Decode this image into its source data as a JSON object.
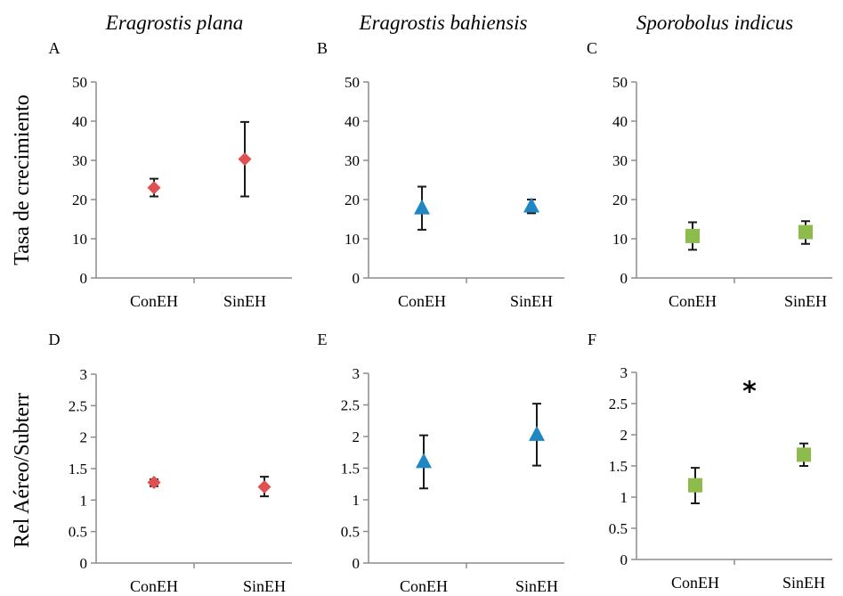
{
  "column_titles": [
    "Eragrostis plana",
    "Eragrostis bahiensis",
    "Sporobolus indicus"
  ],
  "row_labels": [
    "Tasa de crecimiento",
    "Rel Aéreo/Subterr"
  ],
  "colors": {
    "Eragrostis plana": "#e0504f",
    "Eragrostis bahiensis": "#1f87c2",
    "Sporobolus indicus": "#8dbb4c"
  },
  "chart_data": [
    {
      "panel": "A",
      "type": "scatter",
      "title": "Eragrostis plana",
      "xlabel": "",
      "ylabel": "Tasa de crecimiento",
      "marker": "diamond",
      "categories": [
        "ConEH",
        "SinEH"
      ],
      "values": [
        23,
        30.3
      ],
      "err_low": [
        20.8,
        20.8
      ],
      "err_high": [
        25.3,
        39.8
      ],
      "yticks": [
        "0",
        "10",
        "20",
        "30",
        "40",
        "50"
      ],
      "ylim": [
        0,
        50
      ],
      "significance": ""
    },
    {
      "panel": "B",
      "type": "scatter",
      "title": "Eragrostis bahiensis",
      "xlabel": "",
      "ylabel": "",
      "marker": "triangle",
      "categories": [
        "ConEH",
        "SinEH"
      ],
      "values": [
        17.8,
        18.3
      ],
      "err_low": [
        12.3,
        16.5
      ],
      "err_high": [
        23.3,
        20.0
      ],
      "yticks": [
        "0",
        "10",
        "20",
        "30",
        "40",
        "50"
      ],
      "ylim": [
        0,
        50
      ],
      "significance": ""
    },
    {
      "panel": "C",
      "type": "scatter",
      "title": "Sporobolus indicus",
      "xlabel": "",
      "ylabel": "",
      "marker": "square",
      "categories": [
        "ConEH",
        "SinEH"
      ],
      "values": [
        10.7,
        11.7
      ],
      "err_low": [
        7.2,
        8.7
      ],
      "err_high": [
        14.2,
        14.5
      ],
      "yticks": [
        "0",
        "10",
        "20",
        "30",
        "40",
        "50"
      ],
      "ylim": [
        0,
        50
      ],
      "significance": ""
    },
    {
      "panel": "D",
      "type": "scatter",
      "title": "",
      "xlabel": "",
      "ylabel": "Rel Aéreo/Subterr",
      "marker": "diamond",
      "categories": [
        "ConEH",
        "SinEH"
      ],
      "values": [
        1.28,
        1.21
      ],
      "err_low": [
        1.22,
        1.06
      ],
      "err_high": [
        1.33,
        1.37
      ],
      "yticks": [
        "0",
        "0.5",
        "1",
        "1.5",
        "2",
        "2.5",
        "3"
      ],
      "ylim": [
        0,
        3
      ],
      "significance": ""
    },
    {
      "panel": "E",
      "type": "scatter",
      "title": "",
      "xlabel": "",
      "ylabel": "",
      "marker": "triangle",
      "categories": [
        "ConEH",
        "SinEH"
      ],
      "values": [
        1.6,
        2.03
      ],
      "err_low": [
        1.18,
        1.54
      ],
      "err_high": [
        2.02,
        2.52
      ],
      "yticks": [
        "0",
        "0.5",
        "1",
        "1.5",
        "2",
        "2.5",
        "3"
      ],
      "ylim": [
        0,
        3
      ],
      "significance": ""
    },
    {
      "panel": "F",
      "type": "scatter",
      "title": "",
      "xlabel": "",
      "ylabel": "",
      "marker": "square",
      "categories": [
        "ConEH",
        "SinEH"
      ],
      "values": [
        1.19,
        1.68
      ],
      "err_low": [
        0.9,
        1.5
      ],
      "err_high": [
        1.47,
        1.86
      ],
      "yticks": [
        "0",
        "0.5",
        "1",
        "1.5",
        "2",
        "2.5",
        "3"
      ],
      "ylim": [
        0,
        3
      ],
      "significance": "*"
    }
  ]
}
